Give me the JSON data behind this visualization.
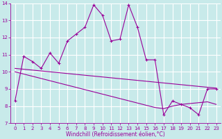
{
  "xlabel": "Windchill (Refroidissement éolien,°C)",
  "x": [
    0,
    1,
    2,
    3,
    4,
    5,
    6,
    7,
    8,
    9,
    10,
    11,
    12,
    13,
    14,
    15,
    16,
    17,
    18,
    19,
    20,
    21,
    22,
    23
  ],
  "y_main": [
    8.3,
    10.9,
    10.6,
    10.2,
    11.1,
    10.5,
    11.8,
    12.2,
    12.6,
    13.9,
    13.3,
    11.8,
    11.9,
    13.9,
    12.6,
    10.7,
    10.7,
    7.5,
    8.3,
    8.1,
    7.9,
    7.5,
    9.0,
    9.0
  ],
  "y_trend1": [
    10.2,
    10.15,
    10.1,
    10.05,
    10.0,
    9.95,
    9.9,
    9.85,
    9.8,
    9.75,
    9.7,
    9.65,
    9.6,
    9.55,
    9.5,
    9.45,
    9.4,
    9.35,
    9.3,
    9.25,
    9.2,
    9.15,
    9.1,
    9.05
  ],
  "y_trend2": [
    10.0,
    9.87,
    9.74,
    9.61,
    9.48,
    9.35,
    9.22,
    9.09,
    8.96,
    8.83,
    8.7,
    8.57,
    8.44,
    8.31,
    8.18,
    8.05,
    7.92,
    7.85,
    8.0,
    8.1,
    8.15,
    8.2,
    8.25,
    8.1
  ],
  "line_color": "#990099",
  "bg_color": "#c8eaea",
  "grid_color": "#ffffff",
  "ylim": [
    7,
    14
  ],
  "xlim": [
    -0.5,
    23.5
  ],
  "yticks": [
    7,
    8,
    9,
    10,
    11,
    12,
    13,
    14
  ],
  "xticks": [
    0,
    1,
    2,
    3,
    4,
    5,
    6,
    7,
    8,
    9,
    10,
    11,
    12,
    13,
    14,
    15,
    16,
    17,
    18,
    19,
    20,
    21,
    22,
    23
  ],
  "tick_fontsize": 5,
  "label_fontsize": 5.5
}
